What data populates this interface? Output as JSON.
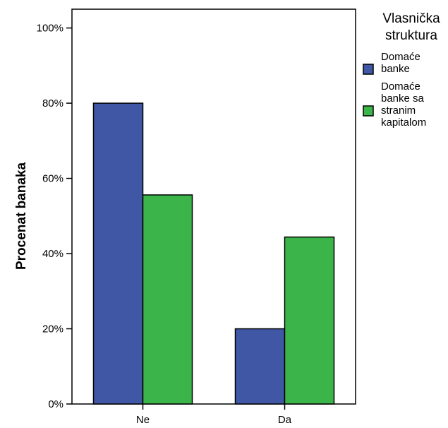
{
  "chart_data": {
    "type": "bar",
    "categories": [
      "Ne",
      "Da"
    ],
    "series": [
      {
        "name": "Domaće banke",
        "name_lines": [
          "Domaće",
          "banke"
        ],
        "color": "#3f57a5",
        "values": [
          80,
          20
        ]
      },
      {
        "name": "Domaće banke sa stranim kapitalom",
        "name_lines": [
          "Domaće",
          "banke sa",
          "stranim",
          "kapitalom"
        ],
        "color": "#3bb54a",
        "values": [
          55.6,
          44.4
        ]
      }
    ],
    "ylabel": "Procenat banaka",
    "xlabel": "",
    "ylim": [
      0,
      105
    ],
    "yticks": [
      0,
      20,
      40,
      60,
      80,
      100
    ],
    "ytick_labels": [
      "0%",
      "20%",
      "40%",
      "60%",
      "80%",
      "100%"
    ],
    "grid": false,
    "legend": {
      "title_lines": [
        "Vlasnička",
        "struktura"
      ],
      "placement": "right"
    }
  }
}
